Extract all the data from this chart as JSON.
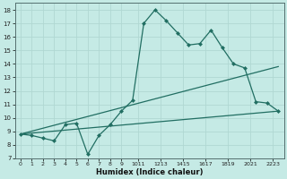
{
  "line1_x": [
    0,
    1,
    2,
    3,
    4,
    5,
    6,
    7,
    8,
    9,
    10,
    11,
    12,
    13,
    14,
    15,
    16,
    17,
    18,
    19,
    20,
    21,
    22,
    23
  ],
  "line1_y": [
    8.8,
    8.7,
    8.5,
    8.3,
    9.5,
    9.6,
    7.3,
    8.7,
    9.5,
    10.5,
    11.3,
    17.0,
    18.0,
    17.2,
    16.3,
    15.4,
    15.5,
    16.5,
    15.2,
    14.0,
    13.7,
    11.2,
    11.1,
    10.5
  ],
  "trend1_x": [
    0,
    23
  ],
  "trend1_y": [
    8.8,
    10.5
  ],
  "trend2_x": [
    0,
    23
  ],
  "trend2_y": [
    8.8,
    13.8
  ],
  "line_color": "#216e62",
  "bg_color": "#c5eae5",
  "grid_color": "#b0d8d2",
  "xlabel": "Humidex (Indice chaleur)",
  "xlim": [
    -0.5,
    23.5
  ],
  "ylim": [
    7,
    18.5
  ],
  "xtick_labels": [
    "0",
    "1",
    "2",
    "3",
    "4",
    "5",
    "6",
    "7",
    "8",
    "9",
    "1011",
    "1213",
    "1415",
    "1617",
    "1819",
    "2021",
    "2223"
  ],
  "xtick_positions": [
    0,
    1,
    2,
    3,
    4,
    5,
    6,
    7,
    8,
    9,
    10.5,
    12.5,
    14.5,
    16.5,
    18.5,
    20.5,
    22.5
  ],
  "yticks": [
    7,
    8,
    9,
    10,
    11,
    12,
    13,
    14,
    15,
    16,
    17,
    18
  ],
  "marker_style": "D",
  "marker_size": 2.5
}
